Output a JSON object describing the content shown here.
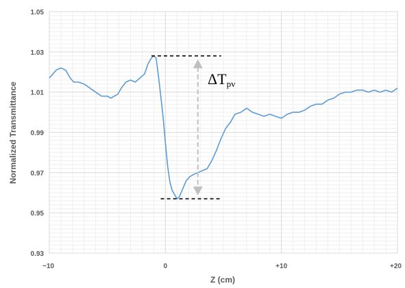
{
  "chart_data": {
    "type": "line",
    "title": "",
    "xlabel": "Z (cm)",
    "ylabel": "Normalized Transmittance",
    "xlim": [
      -10,
      20
    ],
    "ylim": [
      0.93,
      1.05
    ],
    "x_tick_values": [
      -10,
      0,
      10,
      20
    ],
    "x_tick_labels": [
      "−10",
      "0",
      "+10",
      "+20"
    ],
    "y_tick_values": [
      0.93,
      0.95,
      0.97,
      0.99,
      1.01,
      1.03,
      1.05
    ],
    "y_tick_labels": [
      "0.93",
      "0.95",
      "0.97",
      "0.99",
      "1.01",
      "1.03",
      "1.05"
    ],
    "grid": true,
    "line_color": "#5b9bd5",
    "series": [
      {
        "x": [
          -10,
          -9.7,
          -9.4,
          -9.0,
          -8.6,
          -8.2,
          -7.9,
          -7.5,
          -7.0,
          -6.5,
          -6.0,
          -5.5,
          -5.0,
          -4.7,
          -4.4,
          -4.1,
          -3.8,
          -3.4,
          -3.0,
          -2.6,
          -2.2,
          -1.8,
          -1.5,
          -1.2,
          -1.0,
          -0.8,
          -0.6,
          -0.4,
          -0.2,
          0.0,
          0.2,
          0.4,
          0.6,
          0.8,
          1.0,
          1.2,
          1.5,
          1.8,
          2.1,
          2.4,
          2.8,
          3.2,
          3.6,
          4.0,
          4.4,
          4.8,
          5.2,
          5.6,
          6.0,
          6.5,
          7.0,
          7.5,
          8.0,
          8.5,
          9.0,
          9.5,
          10.0,
          10.5,
          11.0,
          11.5,
          12.0,
          12.5,
          13.0,
          13.5,
          14.0,
          14.5,
          15.0,
          15.5,
          16.0,
          16.5,
          17.0,
          17.5,
          18.0,
          18.5,
          19.0,
          19.5,
          20.0
        ],
        "values": [
          1.017,
          1.019,
          1.021,
          1.022,
          1.021,
          1.017,
          1.015,
          1.015,
          1.014,
          1.012,
          1.01,
          1.008,
          1.008,
          1.007,
          1.008,
          1.009,
          1.012,
          1.015,
          1.016,
          1.015,
          1.017,
          1.019,
          1.024,
          1.027,
          1.028,
          1.027,
          1.018,
          1.008,
          0.998,
          0.985,
          0.973,
          0.965,
          0.961,
          0.959,
          0.957,
          0.958,
          0.962,
          0.966,
          0.968,
          0.969,
          0.97,
          0.971,
          0.972,
          0.976,
          0.981,
          0.987,
          0.992,
          0.995,
          0.999,
          1.0,
          1.002,
          1.0,
          0.999,
          0.998,
          0.999,
          0.998,
          0.997,
          0.999,
          1.0,
          1.0,
          1.001,
          1.003,
          1.004,
          1.004,
          1.006,
          1.007,
          1.009,
          1.01,
          1.01,
          1.011,
          1.011,
          1.01,
          1.011,
          1.01,
          1.011,
          1.01,
          1.012
        ]
      }
    ],
    "annotations": {
      "peak_value": 1.028,
      "valley_value": 0.957,
      "label_main": "ΔT",
      "label_sub": "pv",
      "guide_color": "#000000",
      "arrow_color": "#bfbfbf"
    }
  }
}
